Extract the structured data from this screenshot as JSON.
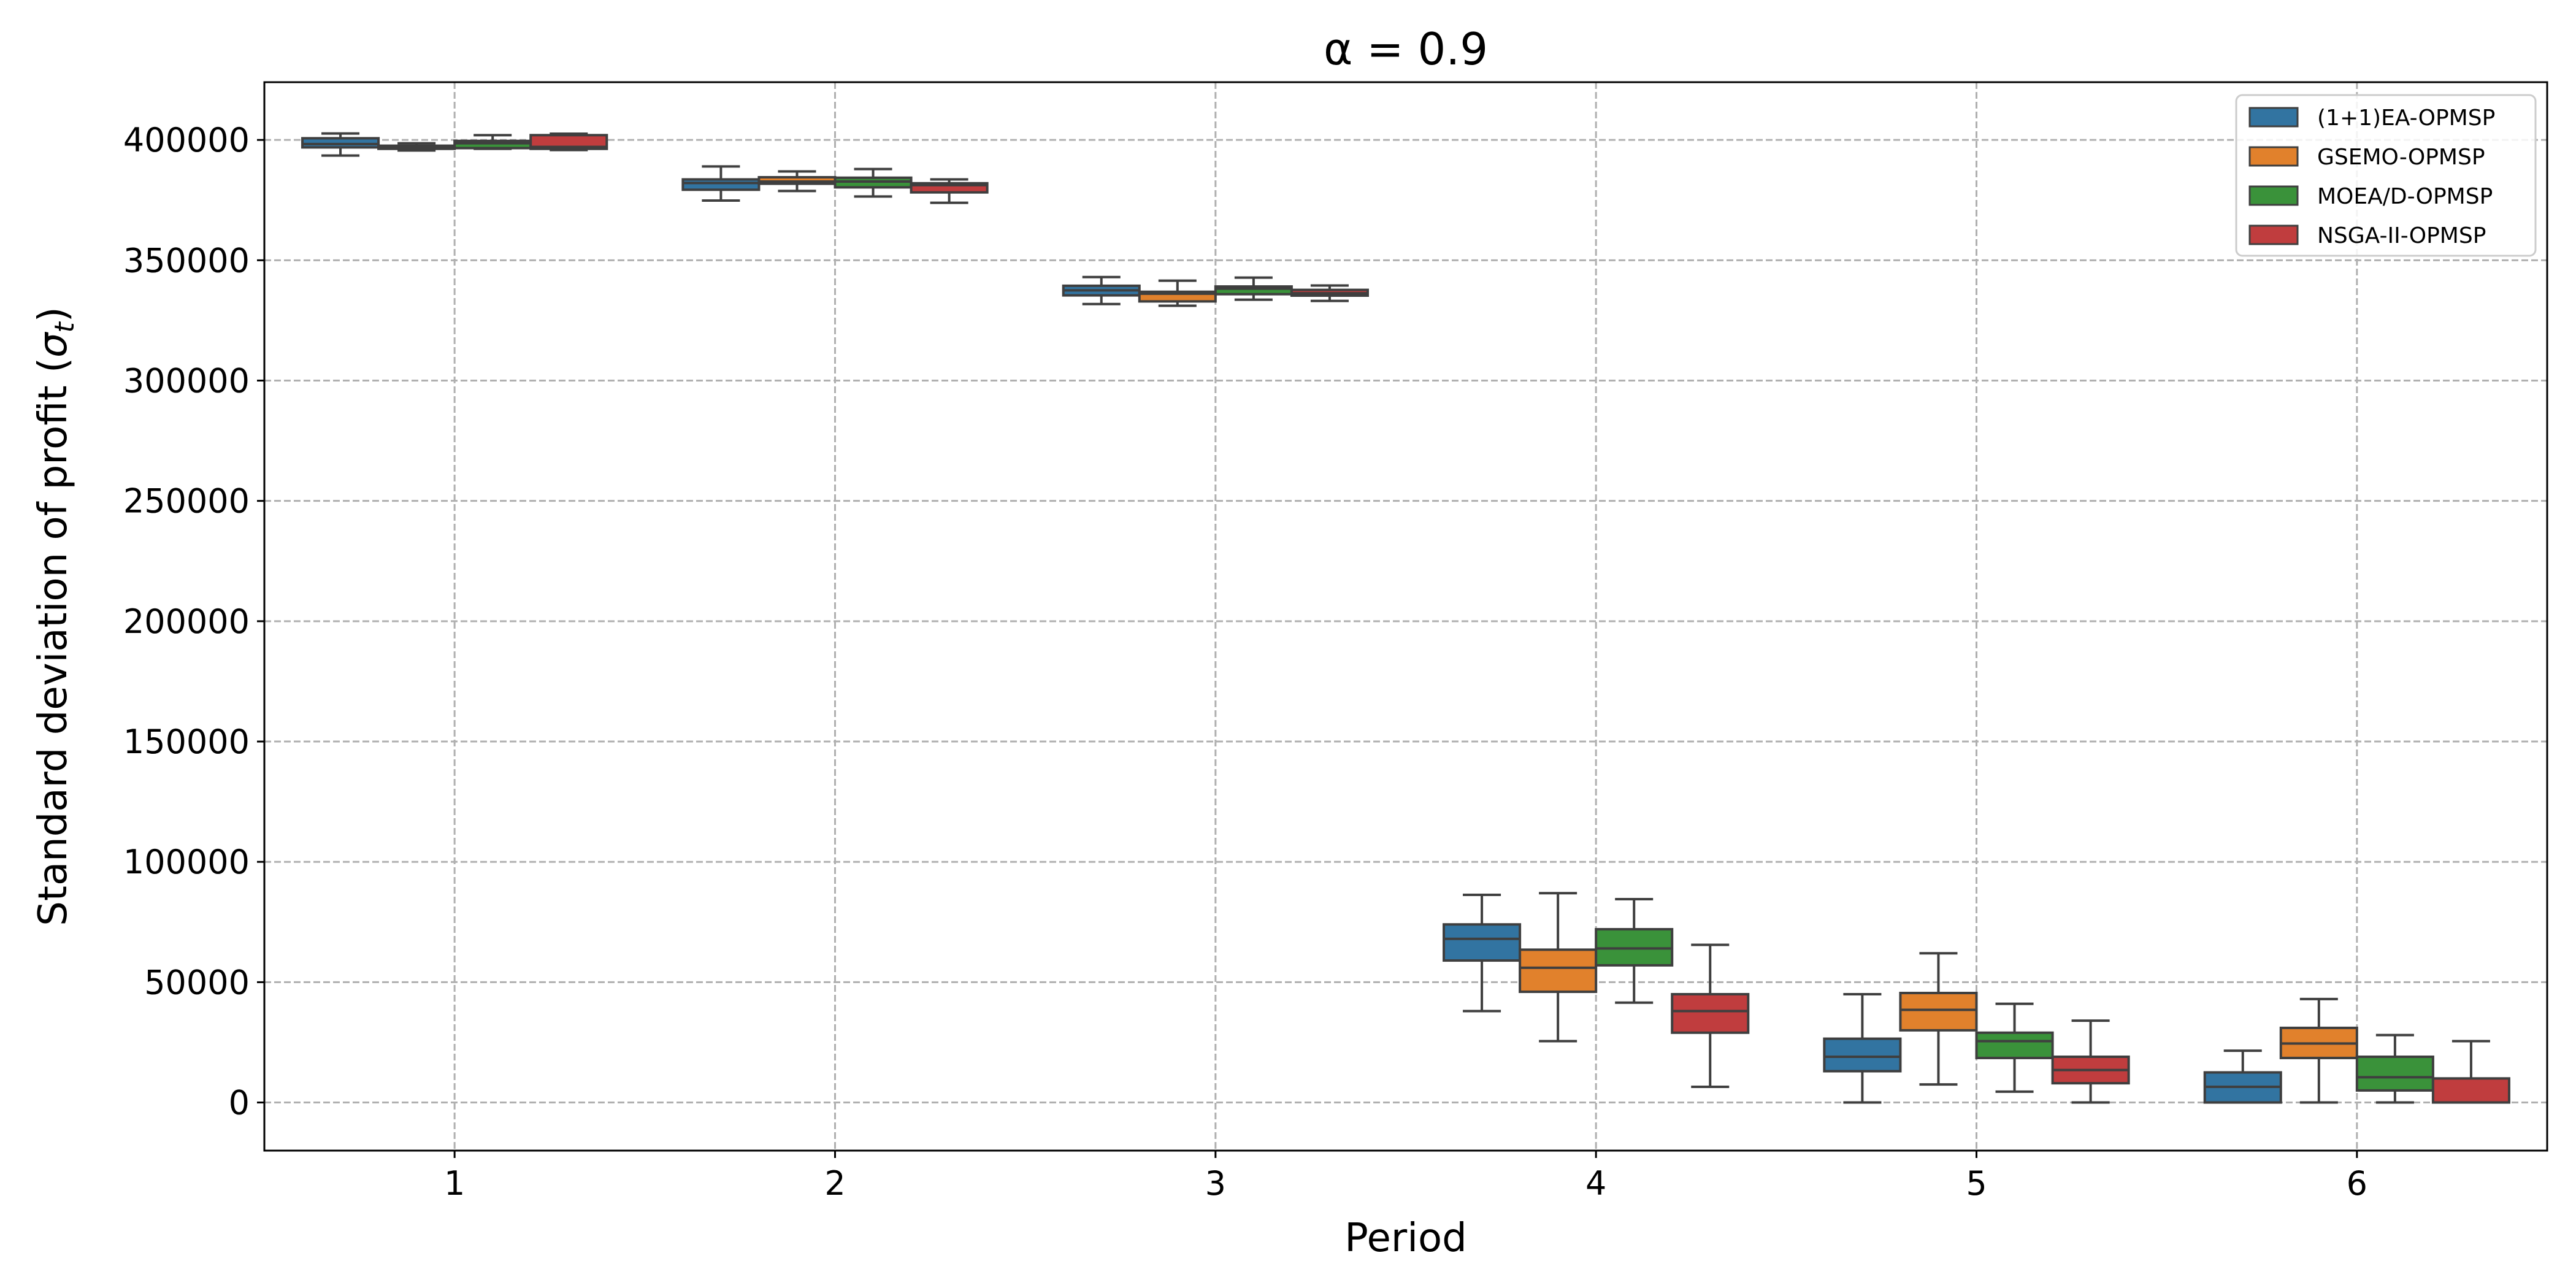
{
  "chart_data": {
    "type": "box",
    "title": "α = 0.9",
    "xlabel": "Period",
    "ylabel": "Standard deviation of profit (σ_t)",
    "ylabel_main": "Standard deviation of profit (",
    "ylabel_sym": "σ",
    "ylabel_sub": "t",
    "ylabel_close": ")",
    "categories": [
      "1",
      "2",
      "3",
      "4",
      "5",
      "6"
    ],
    "ylim": [
      -20000,
      424000
    ],
    "yticks": [
      0,
      50000,
      100000,
      150000,
      200000,
      250000,
      300000,
      350000,
      400000
    ],
    "ytick_labels": [
      "0",
      "50000",
      "100000",
      "150000",
      "200000",
      "250000",
      "300000",
      "350000",
      "400000"
    ],
    "grid": true,
    "legend_position": "top-right",
    "series": [
      {
        "name": "(1+1)EA-OPMSP",
        "color": "#3274a1",
        "boxes": [
          {
            "whislo": 393500,
            "q1": 396900,
            "med": 398300,
            "q3": 400700,
            "whishi": 402700
          },
          {
            "whislo": 374800,
            "q1": 379300,
            "med": 382100,
            "q3": 383600,
            "whishi": 389000
          },
          {
            "whislo": 331800,
            "q1": 335400,
            "med": 337500,
            "q3": 339400,
            "whishi": 343000
          },
          {
            "whislo": 38000,
            "q1": 59000,
            "med": 68000,
            "q3": 74000,
            "whishi": 86300
          },
          {
            "whislo": 0,
            "q1": 13000,
            "med": 19000,
            "q3": 26500,
            "whishi": 45000
          },
          {
            "whislo": 0,
            "q1": 0,
            "med": 6500,
            "q3": 12500,
            "whishi": 21500
          }
        ]
      },
      {
        "name": "GSEMO-OPMSP",
        "color": "#e1812c",
        "boxes": [
          {
            "whislo": 395600,
            "q1": 396300,
            "med": 397100,
            "q3": 397600,
            "whishi": 398600
          },
          {
            "whislo": 378800,
            "q1": 381800,
            "med": 382700,
            "q3": 384500,
            "whishi": 386900
          },
          {
            "whislo": 331100,
            "q1": 332900,
            "med": 336100,
            "q3": 336900,
            "whishi": 341500
          },
          {
            "whislo": 25500,
            "q1": 46000,
            "med": 56000,
            "q3": 63500,
            "whishi": 87000
          },
          {
            "whislo": 7500,
            "q1": 30000,
            "med": 38500,
            "q3": 45500,
            "whishi": 62000
          },
          {
            "whislo": 0,
            "q1": 18500,
            "med": 24500,
            "q3": 31000,
            "whishi": 43000
          }
        ]
      },
      {
        "name": "MOEA/D-OPMSP",
        "color": "#3a923a",
        "boxes": [
          {
            "whislo": 396300,
            "q1": 396600,
            "med": 398600,
            "q3": 399600,
            "whishi": 402000
          },
          {
            "whislo": 376500,
            "q1": 380300,
            "med": 382700,
            "q3": 384300,
            "whishi": 387900
          },
          {
            "whislo": 333600,
            "q1": 335900,
            "med": 338200,
            "q3": 339100,
            "whishi": 342800
          },
          {
            "whislo": 41500,
            "q1": 57000,
            "med": 64000,
            "q3": 72000,
            "whishi": 84500
          },
          {
            "whislo": 4500,
            "q1": 18500,
            "med": 25500,
            "q3": 29000,
            "whishi": 41000
          },
          {
            "whislo": 0,
            "q1": 5000,
            "med": 10500,
            "q3": 19000,
            "whishi": 28000
          }
        ]
      },
      {
        "name": "NSGA-II-OPMSP",
        "color": "#c03d3e",
        "boxes": [
          {
            "whislo": 395800,
            "q1": 396300,
            "med": 397100,
            "q3": 402000,
            "whishi": 402600
          },
          {
            "whislo": 373900,
            "q1": 378200,
            "med": 381200,
            "q3": 382000,
            "whishi": 383600
          },
          {
            "whislo": 333100,
            "q1": 335300,
            "med": 336300,
            "q3": 337700,
            "whishi": 339500
          },
          {
            "whislo": 6500,
            "q1": 29000,
            "med": 38000,
            "q3": 45000,
            "whishi": 65500
          },
          {
            "whislo": 0,
            "q1": 8000,
            "med": 13500,
            "q3": 19000,
            "whishi": 34000
          },
          {
            "whislo": 0,
            "q1": 0,
            "med": 0,
            "q3": 10000,
            "whishi": 25500
          }
        ]
      }
    ]
  }
}
